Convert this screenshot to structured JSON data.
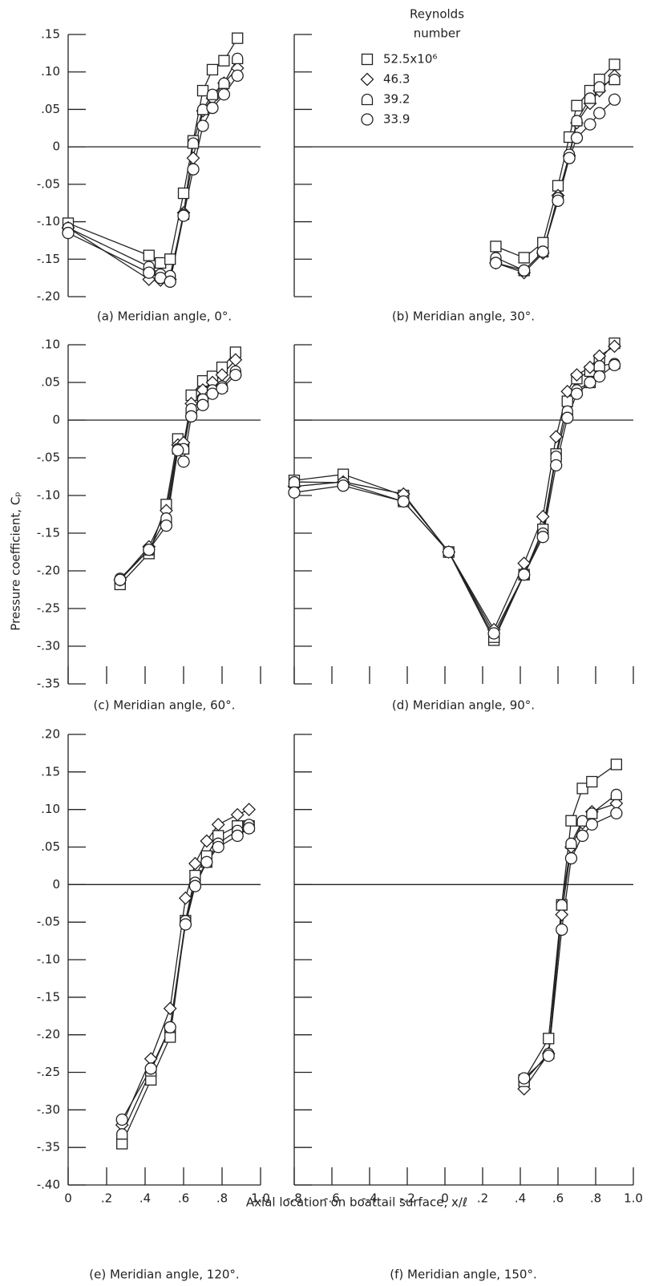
{
  "y_label": "Pressure coefficient, Cₚ",
  "x_label": "Axial location on boattail surface, x/ℓ",
  "legend": {
    "title": [
      "Reynolds",
      "number"
    ],
    "entries": [
      {
        "name": "52.5x10⁶",
        "marker": "square"
      },
      {
        "name": "46.3",
        "marker": "diamond"
      },
      {
        "name": "39.2",
        "marker": "round-top-square"
      },
      {
        "name": "33.9",
        "marker": "circle"
      }
    ]
  },
  "chart_data": [
    {
      "type": "line",
      "caption": "(a) Meridian angle, 0°.",
      "ylim": [
        -0.2,
        0.15
      ],
      "yticks": [
        {
          "value": 0.15,
          "label": ".15"
        },
        {
          "value": 0.1,
          "label": ".10"
        },
        {
          "value": 0.05,
          "label": ".05"
        },
        0,
        {
          "value": -0.05,
          "label": "-.05"
        },
        {
          "value": -0.1,
          "label": "-.10"
        },
        {
          "value": -0.15,
          "label": "-.15"
        },
        {
          "value": -0.2,
          "label": "-.20"
        }
      ],
      "x": [
        0.0,
        0.42,
        0.48,
        0.53,
        0.6,
        0.65,
        0.7,
        0.75,
        0.81,
        0.88
      ],
      "series": [
        {
          "values": [
            -0.102,
            -0.145,
            -0.155,
            -0.15,
            -0.062,
            0.008,
            0.075,
            0.103,
            0.115,
            0.145
          ]
        },
        {
          "values": [
            -0.108,
            -0.177,
            -0.178,
            -0.177,
            -0.088,
            -0.015,
            0.048,
            0.065,
            0.085,
            0.105
          ]
        },
        {
          "values": [
            -0.108,
            -0.16,
            -0.17,
            -0.172,
            -0.09,
            0.005,
            0.05,
            0.07,
            0.085,
            0.118
          ]
        },
        {
          "values": [
            -0.115,
            -0.168,
            -0.175,
            -0.18,
            -0.092,
            -0.03,
            0.028,
            0.052,
            0.07,
            0.095
          ]
        }
      ]
    },
    {
      "type": "line",
      "caption": "(b) Meridian angle, 30°.",
      "x": [
        0.27,
        0.42,
        0.52,
        0.6,
        0.66,
        0.7,
        0.77,
        0.82,
        0.9
      ],
      "series": [
        {
          "values": [
            -0.133,
            -0.148,
            -0.128,
            -0.052,
            0.013,
            0.055,
            0.075,
            0.09,
            0.11
          ]
        },
        {
          "values": [
            -0.155,
            -0.168,
            -0.142,
            -0.065,
            -0.012,
            0.032,
            0.058,
            0.075,
            0.095
          ]
        },
        {
          "values": [
            -0.148,
            -0.165,
            -0.14,
            -0.068,
            -0.01,
            0.035,
            0.065,
            0.08,
            0.09
          ]
        },
        {
          "values": [
            -0.155,
            -0.165,
            -0.14,
            -0.072,
            -0.015,
            0.012,
            0.03,
            0.045,
            0.063
          ]
        }
      ]
    },
    {
      "type": "line",
      "caption": "(c) Meridian angle, 60°.",
      "ylim": [
        -0.35,
        0.1
      ],
      "yticks": [
        {
          "value": 0.1,
          "label": ".10"
        },
        {
          "value": 0.05,
          "label": ".05"
        },
        0,
        {
          "value": -0.05,
          "label": "-.05"
        },
        {
          "value": -0.1,
          "label": "-.10"
        },
        {
          "value": -0.15,
          "label": "-.15"
        },
        {
          "value": -0.2,
          "label": "-.20"
        },
        {
          "value": -0.25,
          "label": "-.25"
        },
        {
          "value": -0.3,
          "label": "-.30"
        },
        {
          "value": -0.35,
          "label": "-.35"
        }
      ],
      "x": [
        0.27,
        0.42,
        0.51,
        0.57,
        0.6,
        0.64,
        0.7,
        0.75,
        0.8,
        0.87
      ],
      "series": [
        {
          "values": [
            -0.218,
            -0.177,
            -0.112,
            -0.025,
            -0.038,
            0.033,
            0.052,
            0.058,
            0.07,
            0.09
          ]
        },
        {
          "values": [
            -0.212,
            -0.168,
            -0.12,
            -0.033,
            -0.03,
            0.022,
            0.04,
            0.05,
            0.06,
            0.08
          ]
        },
        {
          "values": [
            -0.21,
            -0.172,
            -0.13,
            -0.038,
            -0.038,
            0.015,
            0.028,
            0.04,
            0.045,
            0.065
          ]
        },
        {
          "values": [
            -0.212,
            -0.172,
            -0.14,
            -0.04,
            -0.055,
            0.005,
            0.02,
            0.035,
            0.042,
            0.06
          ]
        }
      ]
    },
    {
      "type": "line",
      "caption": "(d) Meridian angle, 90°.",
      "x": [
        -0.8,
        -0.54,
        -0.22,
        0.02,
        0.26,
        0.42,
        0.52,
        0.59,
        0.65,
        0.7,
        0.77,
        0.82,
        0.9
      ],
      "series": [
        {
          "values": [
            -0.08,
            -0.072,
            -0.1,
            -0.175,
            -0.292,
            -0.205,
            -0.145,
            -0.045,
            0.025,
            0.055,
            0.065,
            0.08,
            0.102
          ]
        },
        {
          "values": [
            -0.088,
            -0.082,
            -0.098,
            -0.175,
            -0.278,
            -0.19,
            -0.128,
            -0.022,
            0.038,
            0.06,
            0.07,
            0.085,
            0.098
          ]
        },
        {
          "values": [
            -0.082,
            -0.083,
            -0.108,
            -0.175,
            -0.288,
            -0.205,
            -0.15,
            -0.048,
            0.012,
            0.04,
            0.05,
            0.072,
            0.075
          ]
        },
        {
          "values": [
            -0.096,
            -0.087,
            -0.108,
            -0.175,
            -0.283,
            -0.205,
            -0.155,
            -0.06,
            0.003,
            0.035,
            0.05,
            0.058,
            0.073
          ]
        }
      ]
    },
    {
      "type": "line",
      "caption": "(e) Meridian angle, 120°.",
      "ylim": [
        -0.4,
        0.2
      ],
      "yticks": [
        {
          "value": 0.2,
          "label": ".20"
        },
        {
          "value": 0.15,
          "label": ".15"
        },
        {
          "value": 0.1,
          "label": ".10"
        },
        {
          "value": 0.05,
          "label": ".05"
        },
        0,
        {
          "value": -0.05,
          "label": "-.05"
        },
        {
          "value": -0.1,
          "label": "-.10"
        },
        {
          "value": -0.15,
          "label": "-.15"
        },
        {
          "value": -0.2,
          "label": "-.20"
        },
        {
          "value": -0.25,
          "label": "-.25"
        },
        {
          "value": -0.3,
          "label": "-.30"
        },
        {
          "value": -0.35,
          "label": "-.35"
        },
        {
          "value": -0.4,
          "label": "-.40"
        }
      ],
      "xlim": [
        0,
        1.0
      ],
      "xticks": [
        0,
        {
          "value": 0.2,
          "label": ".2"
        },
        {
          "value": 0.4,
          "label": ".4"
        },
        {
          "value": 0.6,
          "label": ".6"
        },
        {
          "value": 0.8,
          "label": ".8"
        },
        {
          "value": 1.0,
          "label": "1.0"
        }
      ],
      "x": [
        0.28,
        0.43,
        0.53,
        0.61,
        0.66,
        0.72,
        0.78,
        0.88,
        0.94
      ],
      "series": [
        {
          "values": [
            -0.345,
            -0.26,
            -0.203,
            -0.048,
            0.012,
            0.038,
            0.065,
            0.078,
            0.078
          ]
        },
        {
          "values": [
            -0.32,
            -0.232,
            -0.165,
            -0.018,
            0.028,
            0.058,
            0.08,
            0.093,
            0.1
          ]
        },
        {
          "values": [
            -0.332,
            -0.248,
            -0.19,
            -0.048,
            0.003,
            0.03,
            0.055,
            0.072,
            0.08
          ]
        },
        {
          "values": [
            -0.313,
            -0.245,
            -0.19,
            -0.053,
            -0.002,
            0.03,
            0.05,
            0.065,
            0.075
          ]
        }
      ]
    },
    {
      "type": "line",
      "caption": "(f) Meridian angle, 150°.",
      "xlim": [
        -0.8,
        1.0
      ],
      "xticks": [
        {
          "value": -0.8,
          "label": "-.8"
        },
        {
          "value": -0.6,
          "label": "-.6"
        },
        {
          "value": -0.4,
          "label": "-.4"
        },
        {
          "value": -0.2,
          "label": "-.2"
        },
        0,
        {
          "value": 0.2,
          "label": ".2"
        },
        {
          "value": 0.4,
          "label": ".4"
        },
        {
          "value": 0.6,
          "label": ".6"
        },
        {
          "value": 0.8,
          "label": ".8"
        },
        {
          "value": 1.0,
          "label": "1.0"
        }
      ],
      "x": [
        0.42,
        0.55,
        0.62,
        0.67,
        0.73,
        0.78,
        0.91
      ],
      "series": [
        {
          "values": [
            -0.26,
            -0.205,
            -0.027,
            0.085,
            0.128,
            0.137,
            0.16
          ]
        },
        {
          "values": [
            -0.272,
            -0.225,
            -0.04,
            0.05,
            0.082,
            0.097,
            0.108
          ]
        },
        {
          "values": [
            -0.262,
            -0.225,
            -0.027,
            0.055,
            0.085,
            0.095,
            0.12
          ]
        },
        {
          "values": [
            -0.258,
            -0.228,
            -0.06,
            0.035,
            0.065,
            0.08,
            0.095
          ]
        }
      ]
    }
  ]
}
